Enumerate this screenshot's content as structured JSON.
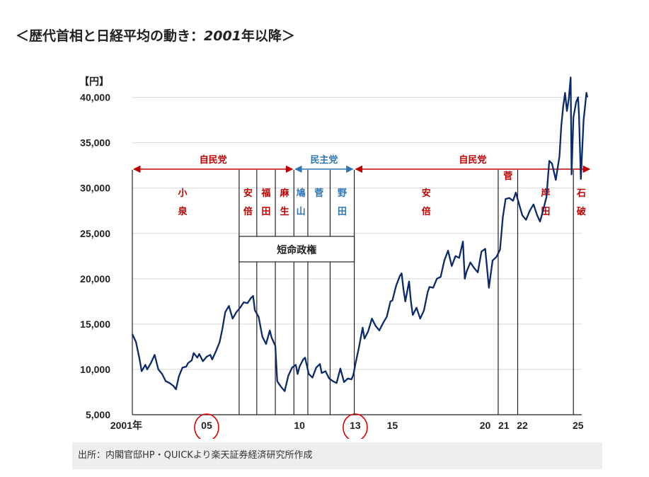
{
  "title": {
    "prefix": "＜歴代首相と日経平均の動き：",
    "year": "2001",
    "suffix": "年以降＞"
  },
  "source": "出所：内閣官邸HP・QUICKより楽天証券経済研究所作成",
  "colors": {
    "line": "#0b2a6b",
    "ldp": "#c00000",
    "dpj": "#2e75b6",
    "circle": "#e00000",
    "grid": "#d9d9d9"
  },
  "chart_data": {
    "type": "line",
    "title": "歴代首相と日経平均の動き：2001年以降",
    "y_unit_label": "【円】",
    "xlim": [
      2001.0,
      2025.2
    ],
    "ylim": [
      5000,
      42000
    ],
    "y_ticks": [
      {
        "value": 5000,
        "label": "5,000"
      },
      {
        "value": 10000,
        "label": "10,000"
      },
      {
        "value": 15000,
        "label": "15,000"
      },
      {
        "value": 20000,
        "label": "20,000"
      },
      {
        "value": 25000,
        "label": "25,000"
      },
      {
        "value": 30000,
        "label": "30,000"
      },
      {
        "value": 35000,
        "label": "35,000"
      },
      {
        "value": 40000,
        "label": "40,000"
      }
    ],
    "x_ticks": [
      {
        "value": 2001.0,
        "label": "2001年"
      },
      {
        "value": 2005.0,
        "label": "05",
        "circled": true
      },
      {
        "value": 2010.0,
        "label": "10"
      },
      {
        "value": 2013.0,
        "label": "13",
        "circled": true
      },
      {
        "value": 2015.0,
        "label": "15"
      },
      {
        "value": 2020.0,
        "label": "20"
      },
      {
        "value": 2021.0,
        "label": "21"
      },
      {
        "value": 2022.0,
        "label": "22"
      },
      {
        "value": 2025.0,
        "label": "25"
      }
    ],
    "series": [
      {
        "name": "日経平均",
        "points": [
          [
            2001.0,
            13900
          ],
          [
            2001.2,
            13000
          ],
          [
            2001.4,
            11000
          ],
          [
            2001.5,
            9800
          ],
          [
            2001.7,
            10500
          ],
          [
            2001.8,
            10000
          ],
          [
            2002.0,
            10700
          ],
          [
            2002.2,
            11600
          ],
          [
            2002.4,
            10000
          ],
          [
            2002.6,
            9500
          ],
          [
            2002.8,
            8700
          ],
          [
            2003.0,
            8500
          ],
          [
            2003.2,
            8200
          ],
          [
            2003.35,
            7800
          ],
          [
            2003.5,
            9200
          ],
          [
            2003.7,
            10200
          ],
          [
            2003.9,
            10300
          ],
          [
            2004.0,
            10700
          ],
          [
            2004.2,
            11000
          ],
          [
            2004.3,
            11800
          ],
          [
            2004.5,
            11300
          ],
          [
            2004.6,
            11700
          ],
          [
            2004.8,
            10900
          ],
          [
            2005.0,
            11400
          ],
          [
            2005.2,
            11600
          ],
          [
            2005.3,
            11100
          ],
          [
            2005.5,
            12000
          ],
          [
            2005.7,
            13000
          ],
          [
            2005.85,
            14500
          ],
          [
            2006.0,
            16300
          ],
          [
            2006.2,
            17000
          ],
          [
            2006.4,
            15600
          ],
          [
            2006.6,
            16300
          ],
          [
            2006.8,
            16800
          ],
          [
            2007.0,
            17400
          ],
          [
            2007.2,
            17300
          ],
          [
            2007.4,
            17900
          ],
          [
            2007.5,
            18100
          ],
          [
            2007.6,
            16500
          ],
          [
            2007.8,
            15800
          ],
          [
            2008.0,
            13600
          ],
          [
            2008.2,
            12800
          ],
          [
            2008.4,
            14300
          ],
          [
            2008.5,
            13500
          ],
          [
            2008.7,
            12600
          ],
          [
            2008.8,
            8700
          ],
          [
            2009.0,
            8100
          ],
          [
            2009.2,
            7600
          ],
          [
            2009.4,
            9300
          ],
          [
            2009.6,
            10200
          ],
          [
            2009.8,
            10500
          ],
          [
            2009.9,
            9500
          ],
          [
            2010.0,
            10300
          ],
          [
            2010.2,
            11100
          ],
          [
            2010.3,
            11300
          ],
          [
            2010.5,
            9500
          ],
          [
            2010.7,
            9100
          ],
          [
            2010.9,
            10200
          ],
          [
            2011.1,
            10600
          ],
          [
            2011.2,
            9600
          ],
          [
            2011.4,
            9800
          ],
          [
            2011.6,
            9000
          ],
          [
            2011.8,
            8700
          ],
          [
            2012.0,
            8500
          ],
          [
            2012.2,
            10100
          ],
          [
            2012.4,
            8600
          ],
          [
            2012.6,
            9000
          ],
          [
            2012.8,
            8900
          ],
          [
            2012.9,
            9400
          ],
          [
            2013.0,
            10500
          ],
          [
            2013.2,
            12400
          ],
          [
            2013.4,
            14600
          ],
          [
            2013.5,
            13400
          ],
          [
            2013.7,
            14200
          ],
          [
            2013.9,
            15600
          ],
          [
            2014.1,
            14800
          ],
          [
            2014.3,
            14300
          ],
          [
            2014.5,
            15100
          ],
          [
            2014.7,
            15800
          ],
          [
            2014.9,
            17500
          ],
          [
            2015.0,
            17600
          ],
          [
            2015.2,
            19200
          ],
          [
            2015.4,
            20300
          ],
          [
            2015.5,
            20600
          ],
          [
            2015.6,
            18800
          ],
          [
            2015.7,
            17500
          ],
          [
            2015.9,
            19700
          ],
          [
            2016.0,
            17500
          ],
          [
            2016.1,
            16000
          ],
          [
            2016.3,
            16800
          ],
          [
            2016.5,
            15600
          ],
          [
            2016.7,
            16500
          ],
          [
            2016.9,
            18500
          ],
          [
            2017.0,
            19100
          ],
          [
            2017.2,
            19000
          ],
          [
            2017.4,
            20000
          ],
          [
            2017.6,
            20200
          ],
          [
            2017.8,
            22000
          ],
          [
            2018.0,
            23100
          ],
          [
            2018.2,
            21400
          ],
          [
            2018.4,
            22500
          ],
          [
            2018.6,
            22300
          ],
          [
            2018.8,
            24100
          ],
          [
            2018.9,
            20000
          ],
          [
            2019.0,
            20800
          ],
          [
            2019.2,
            21800
          ],
          [
            2019.4,
            21200
          ],
          [
            2019.6,
            20700
          ],
          [
            2019.8,
            23000
          ],
          [
            2020.0,
            23300
          ],
          [
            2020.2,
            19000
          ],
          [
            2020.4,
            22000
          ],
          [
            2020.6,
            22400
          ],
          [
            2020.8,
            23200
          ],
          [
            2020.95,
            26800
          ],
          [
            2021.1,
            28800
          ],
          [
            2021.3,
            28900
          ],
          [
            2021.5,
            28600
          ],
          [
            2021.65,
            29500
          ],
          [
            2021.8,
            28400
          ],
          [
            2022.0,
            27000
          ],
          [
            2022.2,
            26500
          ],
          [
            2022.4,
            27500
          ],
          [
            2022.6,
            28200
          ],
          [
            2022.8,
            27000
          ],
          [
            2022.95,
            26300
          ],
          [
            2023.1,
            27400
          ],
          [
            2023.3,
            29000
          ],
          [
            2023.45,
            33000
          ],
          [
            2023.6,
            32700
          ],
          [
            2023.8,
            30900
          ],
          [
            2024.0,
            33500
          ],
          [
            2024.1,
            36900
          ],
          [
            2024.2,
            39000
          ],
          [
            2024.3,
            40500
          ],
          [
            2024.4,
            38500
          ],
          [
            2024.5,
            39800
          ],
          [
            2024.6,
            42200
          ],
          [
            2024.65,
            31500
          ],
          [
            2024.75,
            37800
          ],
          [
            2024.9,
            39500
          ],
          [
            2025.0,
            40000
          ],
          [
            2025.05,
            38000
          ],
          [
            2025.15,
            31000
          ],
          [
            2025.3,
            37500
          ],
          [
            2025.45,
            40500
          ],
          [
            2025.5,
            40000
          ]
        ]
      }
    ],
    "pm_boundaries": [
      2006.75,
      2007.7,
      2008.7,
      2009.7,
      2010.45,
      2011.65,
      2012.95,
      2020.7,
      2021.75,
      2024.75
    ],
    "short_lived_box": {
      "start": 2006.75,
      "end": 2012.95,
      "label": "短命政権"
    },
    "prime_ministers": [
      {
        "name": [
          "小",
          "泉"
        ],
        "start": 2001.0,
        "end": 2006.75,
        "party": "ldp"
      },
      {
        "name": [
          "安",
          "倍"
        ],
        "start": 2006.75,
        "end": 2007.7,
        "party": "ldp"
      },
      {
        "name": [
          "福",
          "田"
        ],
        "start": 2007.7,
        "end": 2008.7,
        "party": "ldp"
      },
      {
        "name": [
          "麻",
          "生"
        ],
        "start": 2008.7,
        "end": 2009.7,
        "party": "ldp"
      },
      {
        "name": [
          "鳩",
          "山"
        ],
        "start": 2009.7,
        "end": 2010.45,
        "party": "dpj"
      },
      {
        "name": [
          "菅"
        ],
        "start": 2010.45,
        "end": 2011.65,
        "party": "dpj"
      },
      {
        "name": [
          "野",
          "田"
        ],
        "start": 2011.65,
        "end": 2012.95,
        "party": "dpj"
      },
      {
        "name": [
          "安",
          "倍"
        ],
        "start": 2012.95,
        "end": 2020.7,
        "party": "ldp"
      },
      {
        "name": [
          "菅"
        ],
        "start": 2020.7,
        "end": 2021.75,
        "party": "ldp"
      },
      {
        "name": [
          "岸",
          "田"
        ],
        "start": 2021.75,
        "end": 2024.75,
        "party": "ldp"
      },
      {
        "name": [
          "石",
          "破"
        ],
        "start": 2024.75,
        "end": 2025.6,
        "party": "ldp"
      }
    ],
    "party_periods": [
      {
        "label": "自民党",
        "start": 2001.0,
        "end": 2009.7,
        "party": "ldp"
      },
      {
        "label": "民主党",
        "start": 2009.7,
        "end": 2012.95,
        "party": "dpj"
      },
      {
        "label": "自民党",
        "start": 2012.95,
        "end": 2025.7,
        "party": "ldp"
      }
    ]
  }
}
